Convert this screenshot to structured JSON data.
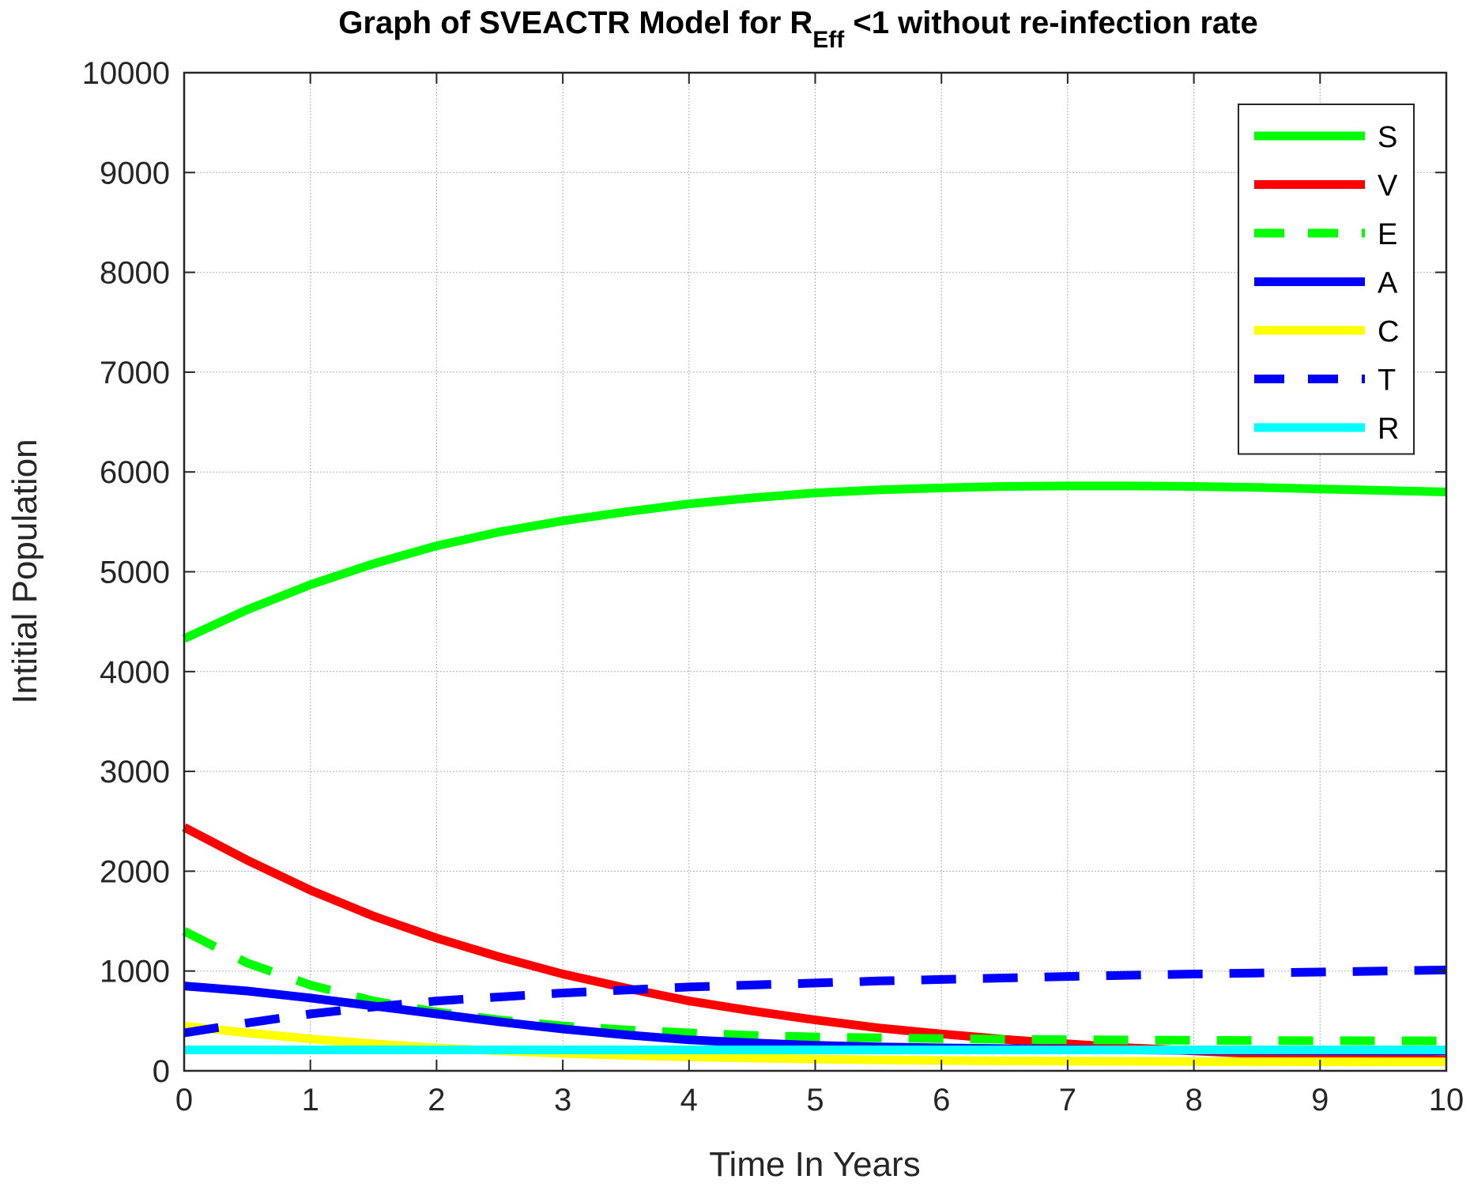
{
  "chart_data": {
    "type": "line",
    "title": "Graph of SVEACTR Model for R",
    "title_subscript": "Eff",
    "title_suffix": " <1  without re-infection rate",
    "xlabel": "Time In Years",
    "ylabel": "Intitial Population",
    "xlim": [
      0,
      10
    ],
    "ylim": [
      0,
      10000
    ],
    "xticks": [
      "0",
      "1",
      "2",
      "3",
      "4",
      "5",
      "6",
      "7",
      "8",
      "9",
      "10"
    ],
    "yticks": [
      "0",
      "1000",
      "2000",
      "3000",
      "4000",
      "5000",
      "6000",
      "7000",
      "8000",
      "9000",
      "10000"
    ],
    "grid": true,
    "legend_position": "top-right",
    "x": [
      0,
      0.5,
      1,
      1.5,
      2,
      2.5,
      3,
      3.5,
      4,
      4.5,
      5,
      5.5,
      6,
      6.5,
      7,
      7.5,
      8,
      8.5,
      9,
      9.5,
      10
    ],
    "series": [
      {
        "name": "S",
        "color": "#00ff00",
        "style": "solid",
        "values": [
          4330,
          4620,
          4870,
          5080,
          5260,
          5400,
          5510,
          5600,
          5680,
          5740,
          5790,
          5820,
          5840,
          5855,
          5860,
          5860,
          5855,
          5845,
          5830,
          5815,
          5800
        ]
      },
      {
        "name": "V",
        "color": "#ff0000",
        "style": "solid",
        "values": [
          2440,
          2110,
          1810,
          1550,
          1330,
          1140,
          970,
          830,
          700,
          600,
          510,
          430,
          370,
          315,
          270,
          230,
          200,
          170,
          150,
          130,
          110
        ]
      },
      {
        "name": "E",
        "color": "#00ff00",
        "style": "dashed",
        "values": [
          1400,
          1080,
          860,
          700,
          590,
          510,
          450,
          410,
          380,
          355,
          340,
          330,
          322,
          316,
          312,
          309,
          306,
          304,
          302,
          301,
          300
        ]
      },
      {
        "name": "A",
        "color": "#0000ff",
        "style": "solid",
        "values": [
          850,
          800,
          730,
          650,
          570,
          490,
          420,
          360,
          310,
          280,
          255,
          240,
          230,
          222,
          215,
          210,
          206,
          203,
          201,
          200,
          200
        ]
      },
      {
        "name": "C",
        "color": "#ffff00",
        "style": "solid",
        "values": [
          450,
          380,
          320,
          270,
          230,
          200,
          175,
          155,
          140,
          128,
          118,
          110,
          104,
          100,
          97,
          95,
          93,
          92,
          91,
          90,
          90
        ]
      },
      {
        "name": "T",
        "color": "#0000ff",
        "style": "dashed",
        "values": [
          380,
          480,
          570,
          640,
          700,
          740,
          780,
          810,
          840,
          860,
          880,
          900,
          915,
          930,
          945,
          958,
          970,
          980,
          990,
          1000,
          1010
        ]
      },
      {
        "name": "R",
        "color": "#00ffff",
        "style": "solid",
        "values": [
          210,
          210,
          210,
          210,
          210,
          210,
          210,
          210,
          210,
          210,
          210,
          210,
          210,
          210,
          210,
          210,
          210,
          210,
          210,
          210,
          210
        ]
      }
    ]
  }
}
